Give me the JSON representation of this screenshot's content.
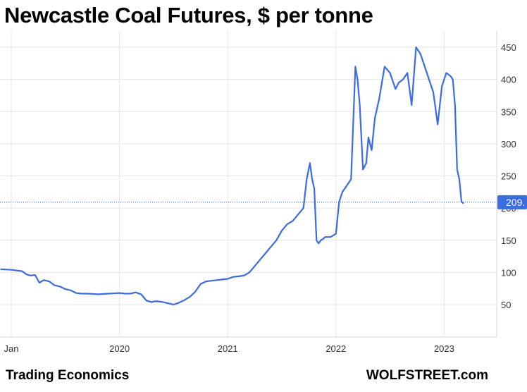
{
  "title": "Newcastle Coal Futures, $ per tonne",
  "source": "Trading Economics",
  "credit": "WOLFSTREET.com",
  "chart_data": {
    "type": "line",
    "title": "Newcastle Coal Futures, $ per tonne",
    "xlabel": "",
    "ylabel": "",
    "ylim": [
      0,
      460
    ],
    "y_ticks": [
      50,
      100,
      150,
      200,
      250,
      300,
      350,
      400,
      450
    ],
    "x_ticks": [
      {
        "label": "Jan",
        "x": 2019.0
      },
      {
        "label": "2020",
        "x": 2020.0
      },
      {
        "label": "2021",
        "x": 2021.0
      },
      {
        "label": "2022",
        "x": 2022.0
      },
      {
        "label": "2023",
        "x": 2023.0
      }
    ],
    "grid": true,
    "y_axis_side": "right",
    "current_value_label": "209.",
    "current_value": 209,
    "line_color": "#3D6BE0",
    "series": [
      {
        "x": [
          2018.9,
          2019.0,
          2019.1,
          2019.14,
          2019.18,
          2019.22,
          2019.26,
          2019.3,
          2019.35,
          2019.4,
          2019.45,
          2019.5,
          2019.55,
          2019.6,
          2019.65,
          2019.7,
          2019.8,
          2019.9,
          2020.0,
          2020.05,
          2020.1,
          2020.15,
          2020.2,
          2020.25,
          2020.3,
          2020.32,
          2020.35,
          2020.4,
          2020.45,
          2020.5,
          2020.55,
          2020.6,
          2020.65,
          2020.7,
          2020.75,
          2020.8,
          2020.85,
          2020.9,
          2020.95,
          2021.0,
          2021.05,
          2021.1,
          2021.15,
          2021.2,
          2021.25,
          2021.3,
          2021.35,
          2021.4,
          2021.45,
          2021.5,
          2021.55,
          2021.6,
          2021.65,
          2021.7,
          2021.73,
          2021.76,
          2021.78,
          2021.8,
          2021.82,
          2021.84,
          2021.86,
          2021.88,
          2021.9,
          2021.95,
          2022.0,
          2022.03,
          2022.06,
          2022.1,
          2022.14,
          2022.18,
          2022.2,
          2022.22,
          2022.25,
          2022.28,
          2022.3,
          2022.33,
          2022.36,
          2022.4,
          2022.45,
          2022.5,
          2022.55,
          2022.58,
          2022.62,
          2022.66,
          2022.7,
          2022.74,
          2022.78,
          2022.82,
          2022.86,
          2022.9,
          2022.94,
          2022.98,
          2023.02,
          2023.06,
          2023.08,
          2023.1,
          2023.12,
          2023.14,
          2023.16,
          2023.18
        ],
        "y": [
          105,
          104,
          102,
          97,
          95,
          96,
          84,
          88,
          86,
          80,
          78,
          74,
          72,
          68,
          67,
          67,
          66,
          67,
          68,
          67,
          67,
          69,
          66,
          56,
          54,
          55,
          55,
          54,
          52,
          50,
          53,
          57,
          62,
          70,
          82,
          86,
          87,
          88,
          89,
          90,
          93,
          94,
          95,
          100,
          110,
          120,
          130,
          140,
          150,
          165,
          175,
          180,
          190,
          200,
          245,
          270,
          245,
          230,
          150,
          145,
          150,
          152,
          155,
          155,
          160,
          210,
          225,
          235,
          245,
          420,
          400,
          360,
          260,
          270,
          310,
          290,
          340,
          370,
          420,
          410,
          385,
          395,
          400,
          410,
          360,
          450,
          440,
          420,
          400,
          380,
          330,
          390,
          410,
          405,
          400,
          360,
          260,
          245,
          210,
          207
        ]
      }
    ]
  }
}
